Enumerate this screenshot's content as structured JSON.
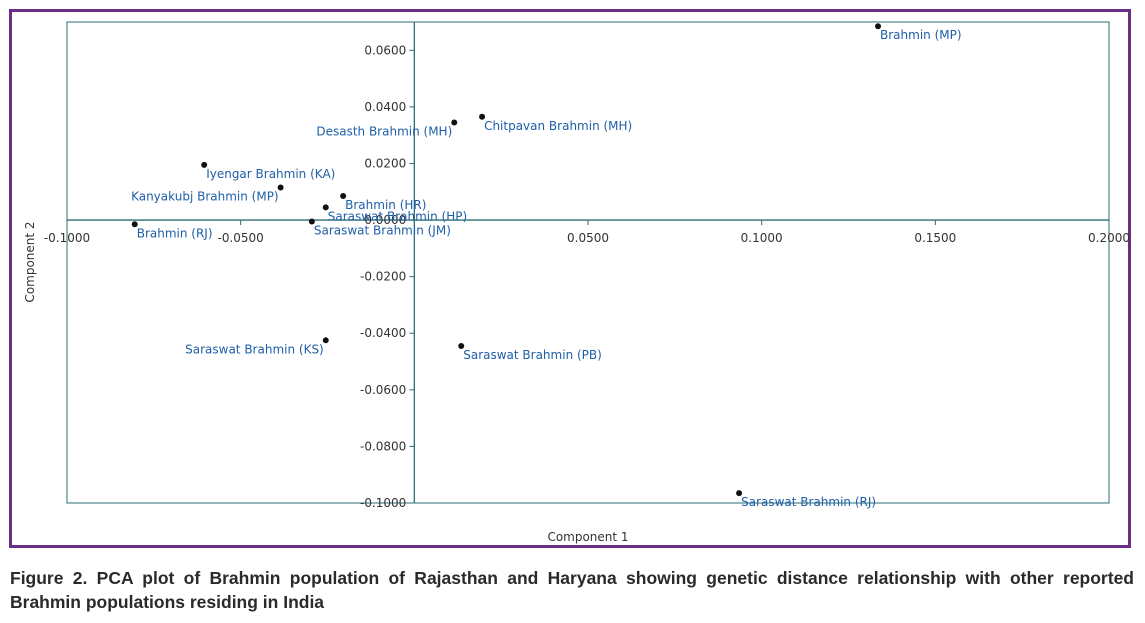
{
  "chart_data": {
    "type": "scatter",
    "xlabel": "Component 1",
    "ylabel": "Component 2",
    "xlim": [
      -0.1,
      0.2
    ],
    "ylim": [
      -0.1,
      0.07
    ],
    "x_ticks": [
      "-0.1000",
      "-0.0500",
      "0.0500",
      "0.1000",
      "0.1500",
      "0.2000"
    ],
    "x_tick_values": [
      -0.1,
      -0.05,
      0.05,
      0.1,
      0.15,
      0.2
    ],
    "y_ticks": [
      "0.0600",
      "0.0400",
      "0.0200",
      "0.0000",
      "-0.0200",
      "-0.0400",
      "-0.0600",
      "-0.0800",
      "-0.1000"
    ],
    "y_tick_values": [
      0.06,
      0.04,
      0.02,
      0.0,
      -0.02,
      -0.04,
      -0.06,
      -0.08,
      -0.1
    ],
    "grid": false,
    "colors": {
      "frame": "#6b2d86",
      "plot_border": "#2e6f73",
      "point": "#111111",
      "label": "#1f5fa8"
    },
    "points": [
      {
        "label": "Brahmin (MP)",
        "x": 0.1335,
        "y": 0.0685,
        "anchor": "right"
      },
      {
        "label": "Desasth Brahmin (MH)",
        "x": 0.0115,
        "y": 0.0345,
        "anchor": "left"
      },
      {
        "label": "Chitpavan Brahmin (MH)",
        "x": 0.0195,
        "y": 0.0365,
        "anchor": "right"
      },
      {
        "label": "Iyengar Brahmin (KA)",
        "x": -0.0605,
        "y": 0.0195,
        "anchor": "right"
      },
      {
        "label": "Kanyakubj Brahmin (MP)",
        "x": -0.0385,
        "y": 0.0115,
        "anchor": "left"
      },
      {
        "label": "Brahmin (HR)",
        "x": -0.0205,
        "y": 0.0085,
        "anchor": "right"
      },
      {
        "label": "Saraswat Brahmin (HP)",
        "x": -0.0255,
        "y": 0.0045,
        "anchor": "right"
      },
      {
        "label": "Brahmin (RJ)",
        "x": -0.0805,
        "y": -0.0015,
        "anchor": "right"
      },
      {
        "label": "Saraswat Brahmin (JM)",
        "x": -0.0295,
        "y": -0.0005,
        "anchor": "right"
      },
      {
        "label": "Saraswat Brahmin (KS)",
        "x": -0.0255,
        "y": -0.0425,
        "anchor": "left"
      },
      {
        "label": "Saraswat Brahmin (PB)",
        "x": 0.0135,
        "y": -0.0445,
        "anchor": "right"
      },
      {
        "label": "Saraswat Brahmin (RJ)",
        "x": 0.0935,
        "y": -0.0965,
        "anchor": "right"
      }
    ]
  },
  "caption": "Figure 2. PCA plot of Brahmin population of Rajasthan and Haryana showing genetic distance relationship with other reported Brahmin populations residing in India"
}
